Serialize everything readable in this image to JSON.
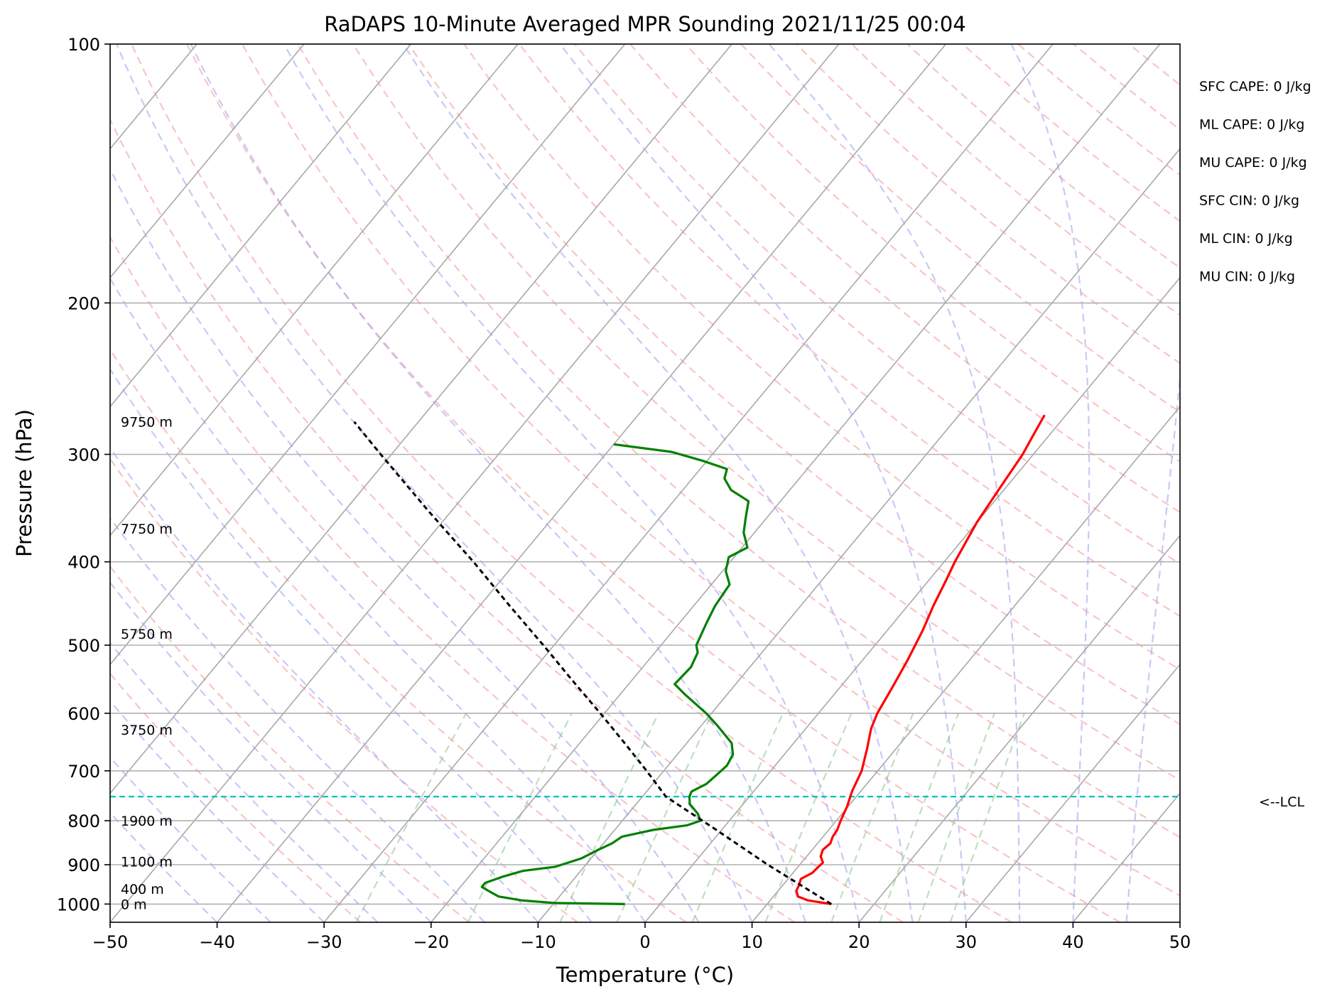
{
  "chart_data": {
    "type": "line",
    "chart_kind": "skew-t log-p sounding",
    "title": "RaDAPS 10-Minute Averaged MPR Sounding 2021/11/25 00:04",
    "xlabel": "Temperature (°C)",
    "ylabel": "Pressure (hPa)",
    "xlim": [
      -50,
      50
    ],
    "ylim": [
      1050,
      100
    ],
    "y_scale": "log",
    "x_ticks": [
      -50,
      -40,
      -30,
      -20,
      -10,
      0,
      10,
      20,
      30,
      40,
      50
    ],
    "x_tick_labels": [
      "−50",
      "−40",
      "−30",
      "−20",
      "−10",
      "0",
      "10",
      "20",
      "30",
      "40",
      "50"
    ],
    "y_ticks": [
      100,
      200,
      300,
      400,
      500,
      600,
      700,
      800,
      900,
      1000
    ],
    "y_tick_labels": [
      "100",
      "200",
      "300",
      "400",
      "500",
      "600",
      "700",
      "800",
      "900",
      "1000"
    ],
    "grid": true,
    "lcl_pressure": 750,
    "lcl_label": "<--LCL",
    "indices": [
      "SFC CAPE: 0 J/kg",
      "ML CAPE: 0 J/kg",
      "MU CAPE: 0 J/kg",
      "SFC CIN: 0 J/kg",
      "ML CIN: 0 J/kg",
      "MU CIN: 0 J/kg"
    ],
    "height_labels": [
      {
        "p": 275,
        "text": "9750 m"
      },
      {
        "p": 366,
        "text": "7750 m"
      },
      {
        "p": 485,
        "text": "5750 m"
      },
      {
        "p": 627,
        "text": "3750 m"
      },
      {
        "p": 800,
        "text": "1900 m"
      },
      {
        "p": 892,
        "text": "1100 m"
      },
      {
        "p": 960,
        "text": "400 m"
      },
      {
        "p": 1000,
        "text": "0 m"
      }
    ],
    "series": [
      {
        "color": "#ff0000",
        "points": [
          [
            1000,
            16.0
          ],
          [
            990,
            13.5
          ],
          [
            980,
            12.3
          ],
          [
            965,
            11.7
          ],
          [
            950,
            11.5
          ],
          [
            935,
            11.2
          ],
          [
            920,
            11.8
          ],
          [
            905,
            11.9
          ],
          [
            895,
            12.0
          ],
          [
            880,
            11.3
          ],
          [
            865,
            11.0
          ],
          [
            850,
            11.2
          ],
          [
            835,
            10.9
          ],
          [
            820,
            10.8
          ],
          [
            800,
            10.4
          ],
          [
            770,
            9.9
          ],
          [
            740,
            9.2
          ],
          [
            700,
            8.5
          ],
          [
            660,
            7.3
          ],
          [
            625,
            6.1
          ],
          [
            600,
            5.5
          ],
          [
            560,
            4.9
          ],
          [
            520,
            4.2
          ],
          [
            480,
            3.3
          ],
          [
            450,
            2.4
          ],
          [
            420,
            1.6
          ],
          [
            400,
            1.0
          ],
          [
            360,
            0.0
          ],
          [
            330,
            -0.5
          ],
          [
            300,
            -1.0
          ],
          [
            285,
            -1.5
          ],
          [
            270,
            -2.0
          ]
        ]
      },
      {
        "color": "#008000",
        "points": [
          [
            1000,
            -3.3
          ],
          [
            997,
            -10.0
          ],
          [
            990,
            -13.3
          ],
          [
            980,
            -15.7
          ],
          [
            965,
            -17.1
          ],
          [
            955,
            -18.0
          ],
          [
            945,
            -18.0
          ],
          [
            930,
            -16.9
          ],
          [
            915,
            -15.4
          ],
          [
            905,
            -12.7
          ],
          [
            885,
            -10.9
          ],
          [
            865,
            -10.0
          ],
          [
            850,
            -9.2
          ],
          [
            835,
            -8.8
          ],
          [
            820,
            -6.4
          ],
          [
            810,
            -3.6
          ],
          [
            800,
            -2.7
          ],
          [
            785,
            -3.5
          ],
          [
            765,
            -5.0
          ],
          [
            750,
            -5.6
          ],
          [
            740,
            -5.8
          ],
          [
            725,
            -5.0
          ],
          [
            705,
            -4.7
          ],
          [
            690,
            -4.5
          ],
          [
            670,
            -4.8
          ],
          [
            650,
            -5.8
          ],
          [
            620,
            -8.5
          ],
          [
            600,
            -10.5
          ],
          [
            570,
            -14.0
          ],
          [
            555,
            -15.7
          ],
          [
            530,
            -15.5
          ],
          [
            510,
            -16.0
          ],
          [
            500,
            -16.7
          ],
          [
            470,
            -17.5
          ],
          [
            450,
            -18.0
          ],
          [
            425,
            -18.3
          ],
          [
            410,
            -19.7
          ],
          [
            395,
            -20.5
          ],
          [
            385,
            -19.5
          ],
          [
            370,
            -21.0
          ],
          [
            355,
            -22.0
          ],
          [
            340,
            -23.0
          ],
          [
            330,
            -25.5
          ],
          [
            320,
            -27.0
          ],
          [
            312,
            -27.5
          ],
          [
            305,
            -30.5
          ],
          [
            298,
            -34.0
          ],
          [
            292,
            -40.0
          ]
        ]
      },
      {
        "color": "#000000",
        "dash": "7,5",
        "points": [
          [
            1000,
            16.0
          ],
          [
            900,
            7.0
          ],
          [
            820,
            -0.5
          ],
          [
            750,
            -7.8
          ],
          [
            700,
            -11.6
          ],
          [
            650,
            -15.8
          ],
          [
            600,
            -20.4
          ],
          [
            550,
            -25.5
          ],
          [
            500,
            -31.0
          ],
          [
            450,
            -37.2
          ],
          [
            400,
            -44.0
          ],
          [
            350,
            -52.0
          ],
          [
            300,
            -61.0
          ],
          [
            275,
            -66.0
          ]
        ]
      }
    ]
  }
}
